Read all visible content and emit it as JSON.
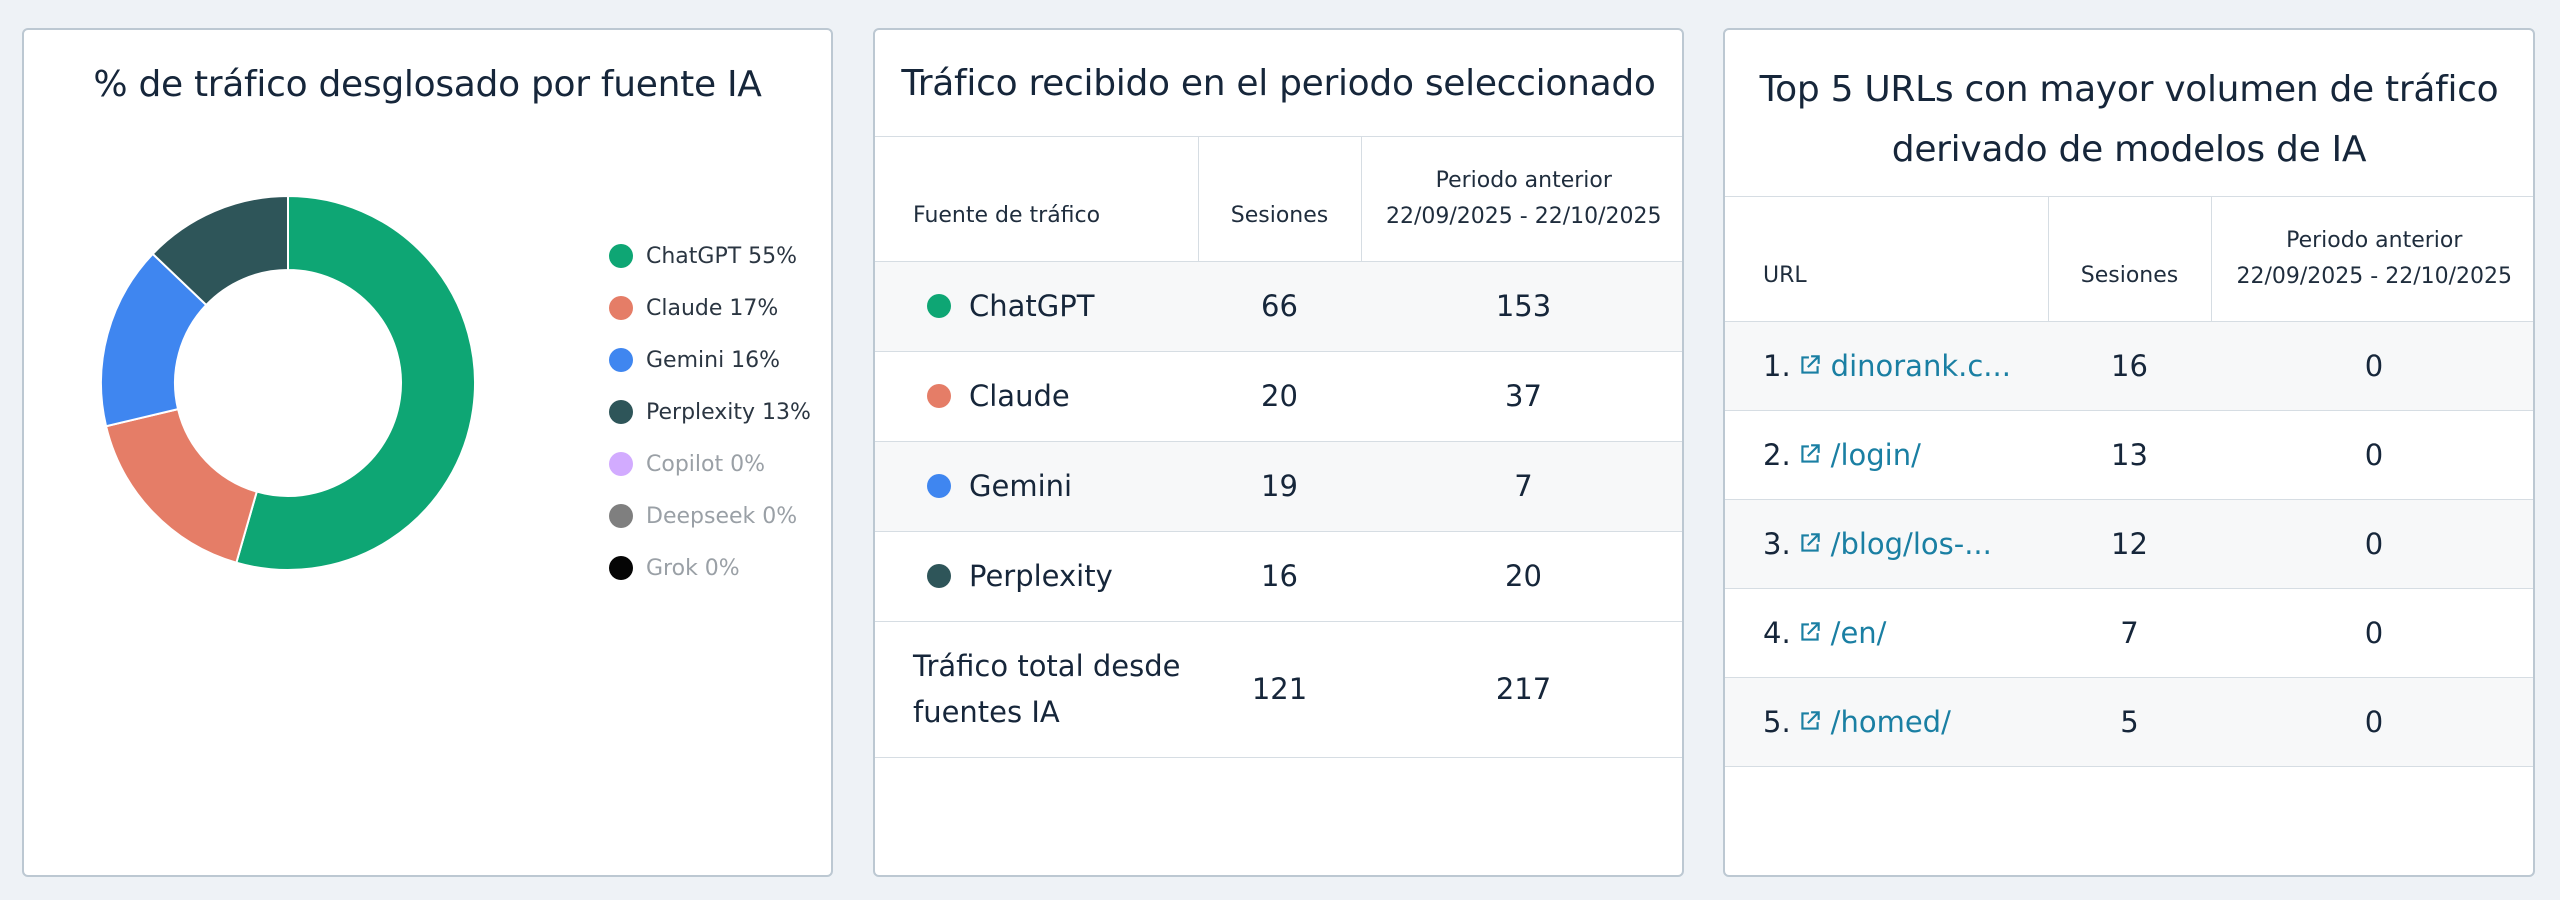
{
  "donut_panel": {
    "title": "% de tráfico desglosado por fuente IA",
    "chart_data": {
      "type": "pie",
      "title": "% de tráfico desglosado por fuente IA",
      "categories": [
        "ChatGPT",
        "Claude",
        "Gemini",
        "Perplexity",
        "Copilot",
        "Deepseek",
        "Grok"
      ],
      "values": [
        55,
        17,
        16,
        13,
        0,
        0,
        0
      ],
      "legend_labels": [
        "ChatGPT 55%",
        "Claude 17%",
        "Gemini 16%",
        "Perplexity 13%",
        "Copilot 0%",
        "Deepseek 0%",
        "Grok 0%"
      ],
      "colors": [
        "#0ea674",
        "#e57d67",
        "#3f86f0",
        "#2e5559",
        "#d2abff",
        "#7f7f7f",
        "#050505"
      ],
      "legend_position": "right",
      "donut": true
    }
  },
  "traffic_panel": {
    "title": "Tráfico recibido en el periodo seleccionado",
    "headers": {
      "source": "Fuente de tráfico",
      "sessions": "Sesiones",
      "previous_label": "Periodo anterior",
      "previous_range": "22/09/2025 - 22/10/2025"
    },
    "rows": [
      {
        "source": "ChatGPT",
        "sessions": "66",
        "previous": "153",
        "color": "#0ea674"
      },
      {
        "source": "Claude",
        "sessions": "20",
        "previous": "37",
        "color": "#e57d67"
      },
      {
        "source": "Gemini",
        "sessions": "19",
        "previous": "7",
        "color": "#3f86f0"
      },
      {
        "source": "Perplexity",
        "sessions": "16",
        "previous": "20",
        "color": "#2e5559"
      }
    ],
    "total": {
      "label": "Tráfico total desde fuentes IA",
      "sessions": "121",
      "previous": "217"
    }
  },
  "urls_panel": {
    "title": "Top 5 URLs con mayor volumen de tráfico derivado de modelos de IA",
    "headers": {
      "url": "URL",
      "sessions": "Sesiones",
      "previous_label": "Periodo anterior",
      "previous_range": "22/09/2025 - 22/10/2025"
    },
    "link_icon": "external-link-icon",
    "link_color": "#1a7fa3",
    "rows": [
      {
        "rank": "1.",
        "url": "dinorank.c...",
        "sessions": "16",
        "previous": "0"
      },
      {
        "rank": "2.",
        "url": "/login/",
        "sessions": "13",
        "previous": "0"
      },
      {
        "rank": "3.",
        "url": "/blog/los-...",
        "sessions": "12",
        "previous": "0"
      },
      {
        "rank": "4.",
        "url": "/en/",
        "sessions": "7",
        "previous": "0"
      },
      {
        "rank": "5.",
        "url": "/homed/",
        "sessions": "5",
        "previous": "0"
      }
    ]
  }
}
